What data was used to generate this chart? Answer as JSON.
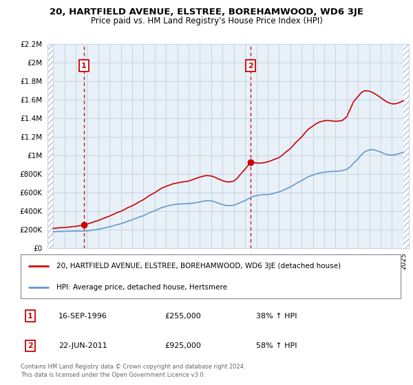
{
  "title": "20, HARTFIELD AVENUE, ELSTREE, BOREHAMWOOD, WD6 3JE",
  "subtitle": "Price paid vs. HM Land Registry's House Price Index (HPI)",
  "legend_line1": "20, HARTFIELD AVENUE, ELSTREE, BOREHAMWOOD, WD6 3JE (detached house)",
  "legend_line2": "HPI: Average price, detached house, Hertsmere",
  "annotation1_label": "1",
  "annotation1_date": "16-SEP-1996",
  "annotation1_price": "£255,000",
  "annotation1_hpi": "38% ↑ HPI",
  "annotation2_label": "2",
  "annotation2_date": "22-JUN-2011",
  "annotation2_price": "£925,000",
  "annotation2_hpi": "58% ↑ HPI",
  "footnote": "Contains HM Land Registry data © Crown copyright and database right 2024.\nThis data is licensed under the Open Government Licence v3.0.",
  "grid_color": "#c8d4e0",
  "plot_bg": "#e8f0f8",
  "red_line_color": "#cc0000",
  "blue_line_color": "#6699cc",
  "dashed_line_color": "#cc0000",
  "ylim": [
    0,
    2200000
  ],
  "yticks": [
    0,
    200000,
    400000,
    600000,
    800000,
    1000000,
    1200000,
    1400000,
    1600000,
    1800000,
    2000000,
    2200000
  ],
  "xlim_start": 1993.5,
  "xlim_end": 2025.5,
  "hatch_left_end": 1994.0,
  "hatch_right_start": 2025.0,
  "sale1_year": 1996.71,
  "sale1_value": 255000,
  "sale2_year": 2011.47,
  "sale2_value": 925000,
  "red_x": [
    1994.0,
    1994.3,
    1994.6,
    1995.0,
    1995.3,
    1995.6,
    1996.0,
    1996.3,
    1996.6,
    1996.71,
    1997.0,
    1997.3,
    1997.6,
    1998.0,
    1998.3,
    1998.6,
    1999.0,
    1999.3,
    1999.6,
    2000.0,
    2000.3,
    2000.6,
    2001.0,
    2001.3,
    2001.6,
    2002.0,
    2002.3,
    2002.6,
    2003.0,
    2003.3,
    2003.6,
    2004.0,
    2004.3,
    2004.6,
    2005.0,
    2005.3,
    2005.6,
    2006.0,
    2006.3,
    2006.6,
    2007.0,
    2007.3,
    2007.6,
    2008.0,
    2008.3,
    2008.6,
    2009.0,
    2009.3,
    2009.6,
    2010.0,
    2010.3,
    2010.6,
    2011.0,
    2011.3,
    2011.47,
    2011.6,
    2012.0,
    2012.3,
    2012.6,
    2013.0,
    2013.3,
    2013.6,
    2014.0,
    2014.3,
    2014.6,
    2015.0,
    2015.3,
    2015.6,
    2016.0,
    2016.3,
    2016.6,
    2017.0,
    2017.3,
    2017.6,
    2018.0,
    2018.3,
    2018.6,
    2019.0,
    2019.3,
    2019.6,
    2020.0,
    2020.3,
    2020.6,
    2021.0,
    2021.3,
    2021.6,
    2022.0,
    2022.3,
    2022.6,
    2023.0,
    2023.3,
    2023.6,
    2024.0,
    2024.3,
    2024.6,
    2025.0
  ],
  "red_y": [
    215000,
    218000,
    222000,
    225000,
    228000,
    232000,
    237000,
    243000,
    250000,
    255000,
    262000,
    272000,
    285000,
    300000,
    315000,
    330000,
    348000,
    365000,
    382000,
    400000,
    418000,
    438000,
    458000,
    478000,
    500000,
    525000,
    550000,
    575000,
    600000,
    625000,
    648000,
    668000,
    682000,
    695000,
    705000,
    712000,
    718000,
    725000,
    738000,
    752000,
    768000,
    778000,
    785000,
    780000,
    768000,
    750000,
    730000,
    718000,
    715000,
    725000,
    755000,
    800000,
    855000,
    900000,
    925000,
    930000,
    920000,
    918000,
    922000,
    932000,
    945000,
    960000,
    978000,
    1005000,
    1038000,
    1075000,
    1115000,
    1155000,
    1200000,
    1245000,
    1285000,
    1318000,
    1345000,
    1362000,
    1375000,
    1378000,
    1375000,
    1370000,
    1372000,
    1378000,
    1418000,
    1500000,
    1580000,
    1638000,
    1680000,
    1700000,
    1695000,
    1680000,
    1658000,
    1625000,
    1598000,
    1575000,
    1558000,
    1558000,
    1568000,
    1590000
  ],
  "blue_x": [
    1994.0,
    1994.3,
    1994.6,
    1995.0,
    1995.3,
    1995.6,
    1996.0,
    1996.3,
    1996.6,
    1997.0,
    1997.3,
    1997.6,
    1998.0,
    1998.3,
    1998.6,
    1999.0,
    1999.3,
    1999.6,
    2000.0,
    2000.3,
    2000.6,
    2001.0,
    2001.3,
    2001.6,
    2002.0,
    2002.3,
    2002.6,
    2003.0,
    2003.3,
    2003.6,
    2004.0,
    2004.3,
    2004.6,
    2005.0,
    2005.3,
    2005.6,
    2006.0,
    2006.3,
    2006.6,
    2007.0,
    2007.3,
    2007.6,
    2008.0,
    2008.3,
    2008.6,
    2009.0,
    2009.3,
    2009.6,
    2010.0,
    2010.3,
    2010.6,
    2011.0,
    2011.3,
    2011.6,
    2012.0,
    2012.3,
    2012.6,
    2013.0,
    2013.3,
    2013.6,
    2014.0,
    2014.3,
    2014.6,
    2015.0,
    2015.3,
    2015.6,
    2016.0,
    2016.3,
    2016.6,
    2017.0,
    2017.3,
    2017.6,
    2018.0,
    2018.3,
    2018.6,
    2019.0,
    2019.3,
    2019.6,
    2020.0,
    2020.3,
    2020.6,
    2021.0,
    2021.3,
    2021.6,
    2022.0,
    2022.3,
    2022.6,
    2023.0,
    2023.3,
    2023.6,
    2024.0,
    2024.3,
    2024.6,
    2025.0
  ],
  "blue_y": [
    178000,
    180000,
    182000,
    183000,
    184000,
    185000,
    186000,
    186000,
    186000,
    188000,
    192000,
    198000,
    205000,
    213000,
    222000,
    232000,
    242000,
    253000,
    265000,
    278000,
    292000,
    308000,
    322000,
    336000,
    352000,
    370000,
    388000,
    405000,
    422000,
    438000,
    452000,
    462000,
    470000,
    476000,
    479000,
    480000,
    482000,
    486000,
    492000,
    500000,
    508000,
    515000,
    512000,
    502000,
    488000,
    472000,
    462000,
    460000,
    465000,
    478000,
    495000,
    515000,
    535000,
    555000,
    568000,
    575000,
    578000,
    580000,
    585000,
    595000,
    608000,
    622000,
    640000,
    660000,
    682000,
    705000,
    730000,
    752000,
    772000,
    790000,
    803000,
    812000,
    820000,
    825000,
    828000,
    830000,
    832000,
    838000,
    852000,
    878000,
    918000,
    965000,
    1008000,
    1042000,
    1062000,
    1065000,
    1055000,
    1038000,
    1022000,
    1010000,
    1005000,
    1010000,
    1020000,
    1035000
  ]
}
